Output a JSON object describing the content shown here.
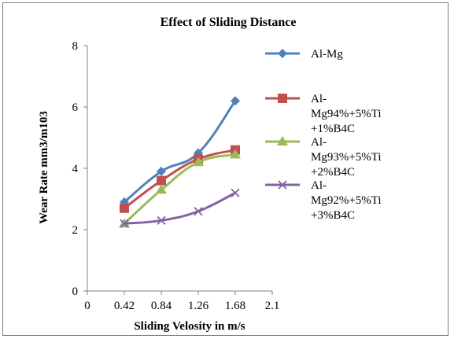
{
  "chart_data": {
    "type": "line",
    "title": "Effect of Sliding  Distance",
    "xlabel": "Sliding Velosity in m/s",
    "ylabel": "Wear Rate mm3/m103",
    "xlim": [
      0,
      2.1
    ],
    "ylim": [
      0,
      8
    ],
    "x_ticks": [
      "0",
      "0.42",
      "0.84",
      "1.26",
      "1.68",
      "2.1"
    ],
    "y_ticks": [
      "0",
      "2",
      "4",
      "6",
      "8"
    ],
    "grid": false,
    "legend_position": "right",
    "x": [
      0.42,
      0.84,
      1.26,
      1.68
    ],
    "series": [
      {
        "name": "Al-Mg",
        "legend_lines": [
          "Al-Mg"
        ],
        "values": [
          2.9,
          3.9,
          4.5,
          6.2
        ],
        "color": "#4f81bd",
        "marker": "diamond"
      },
      {
        "name": "Al-Mg94%+5%Ti+1%B4C",
        "legend_lines": [
          "Al-",
          "Mg94%+5%Ti",
          "+1%B4C"
        ],
        "values": [
          2.7,
          3.6,
          4.3,
          4.6
        ],
        "color": "#c0504d",
        "marker": "square"
      },
      {
        "name": "Al-Mg93%+5%Ti+2%B4C",
        "legend_lines": [
          "Al-",
          "Mg93%+5%Ti",
          "+2%B4C"
        ],
        "values": [
          2.2,
          3.3,
          4.2,
          4.45
        ],
        "color": "#9bbb59",
        "marker": "triangle"
      },
      {
        "name": "Al-Mg92%+5%Ti+3%B4C",
        "legend_lines": [
          "Al-",
          "Mg92%+5%Ti",
          "+3%B4C"
        ],
        "values": [
          2.2,
          2.3,
          2.6,
          3.2
        ],
        "color": "#8064a2",
        "marker": "x"
      }
    ]
  }
}
